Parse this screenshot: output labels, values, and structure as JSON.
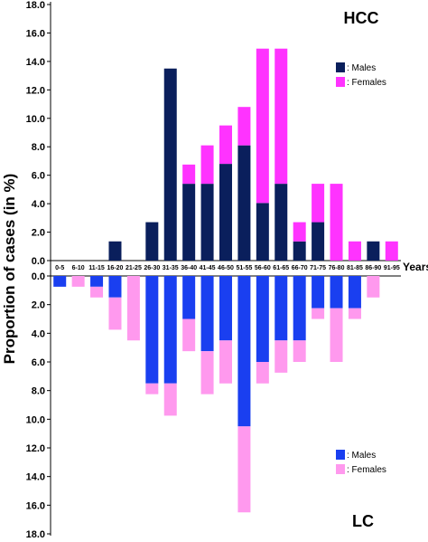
{
  "chart_data": [
    {
      "type": "bar",
      "stacked": true,
      "panel": "top",
      "title": "HCC",
      "ylabel": "Proportion of cases (in %)",
      "xlabel": "Years",
      "ylim": [
        0,
        18
      ],
      "yticks": [
        "0.0",
        "2.0",
        "4.0",
        "6.0",
        "8.0",
        "10.0",
        "12.0",
        "14.0",
        "16.0",
        "18.0"
      ],
      "categories": [
        "0-5",
        "6-10",
        "11-15",
        "16-20",
        "21-25",
        "26-30",
        "31-35",
        "36-40",
        "41-45",
        "46-50",
        "51-55",
        "56-60",
        "61-65",
        "66-70",
        "71-75",
        "76-80",
        "81-85",
        "86-90",
        "91-95"
      ],
      "legend": "top-right",
      "series": [
        {
          "name": ": Males",
          "color": "#0a1f5c",
          "values": [
            0,
            0,
            0,
            1.35,
            0,
            2.7,
            13.5,
            5.4,
            5.4,
            6.8,
            8.1,
            4.05,
            5.4,
            1.35,
            2.7,
            0,
            0,
            1.35,
            0
          ]
        },
        {
          "name": ": Females",
          "color": "#ff33ff",
          "values": [
            0,
            0,
            0,
            0,
            0,
            0,
            0,
            1.35,
            2.7,
            2.7,
            2.7,
            10.85,
            9.5,
            1.35,
            2.7,
            5.4,
            1.35,
            0,
            1.35
          ]
        }
      ]
    },
    {
      "type": "bar",
      "stacked": true,
      "panel": "bottom",
      "title": "LC",
      "ylim": [
        0,
        18
      ],
      "yticks": [
        "0.0",
        "2.0",
        "4.0",
        "6.0",
        "8.0",
        "10.0",
        "12.0",
        "14.0",
        "16.0",
        "18.0"
      ],
      "categories": [
        "0-5",
        "6-10",
        "11-15",
        "16-20",
        "21-25",
        "26-30",
        "31-35",
        "36-40",
        "41-45",
        "46-50",
        "51-55",
        "56-60",
        "61-65",
        "66-70",
        "71-75",
        "76-80",
        "81-85",
        "86-90",
        "91-95"
      ],
      "legend": "bottom-right",
      "series": [
        {
          "name": ": Males",
          "color": "#1a3ff0",
          "values": [
            0.75,
            0,
            0.75,
            1.5,
            0,
            7.5,
            7.5,
            3.0,
            5.25,
            4.5,
            10.5,
            6.0,
            4.5,
            4.5,
            2.25,
            2.25,
            2.25,
            0,
            0
          ]
        },
        {
          "name": ": Females",
          "color": "#ff99ee",
          "values": [
            0,
            0.75,
            0.75,
            2.25,
            4.5,
            0.75,
            2.25,
            2.25,
            3.0,
            3.0,
            6.0,
            1.5,
            2.25,
            1.5,
            0.75,
            3.75,
            0.75,
            1.5,
            0
          ]
        }
      ]
    }
  ]
}
